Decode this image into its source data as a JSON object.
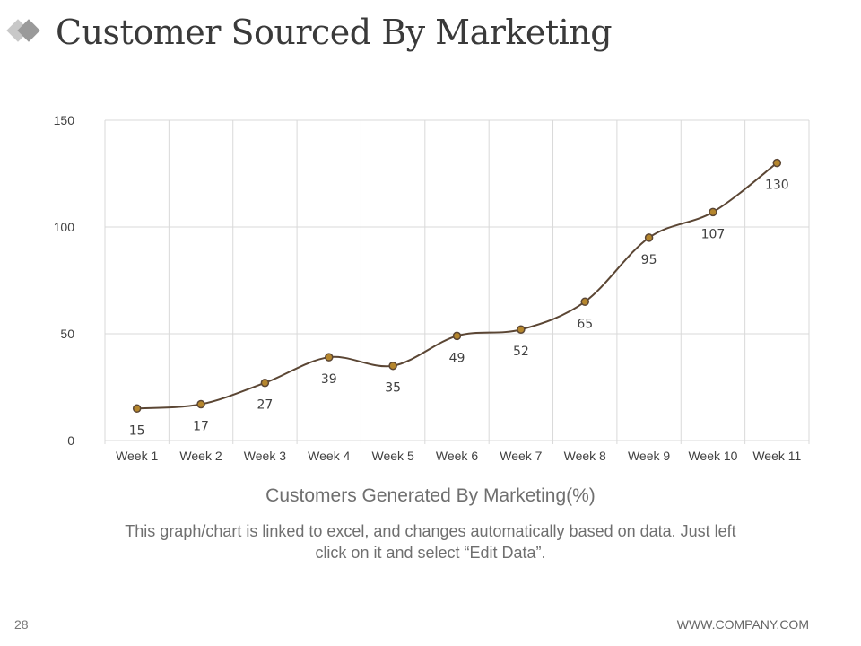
{
  "slide": {
    "title": "Customer Sourced By Marketing",
    "page_number": "28",
    "footer_url": "WWW.COMPANY.COM",
    "note": "This graph/chart is linked to excel, and changes automatically based on data. Just left click on it and select “Edit Data”."
  },
  "colors": {
    "line": "#5b4634",
    "marker_fill": "#b5862d",
    "marker_stroke": "#5b4634",
    "grid": "#d9d9d9",
    "text": "#404040",
    "logo_light": "#c8c8c8",
    "logo_dark": "#9a9a9a"
  },
  "chart_data": {
    "type": "line",
    "title": "Customers Generated By Marketing(%)",
    "categories": [
      "Week 1",
      "Week 2",
      "Week 3",
      "Week 4",
      "Week 5",
      "Week 6",
      "Week 7",
      "Week 8",
      "Week 9",
      "Week 10",
      "Week 11"
    ],
    "series": [
      {
        "name": "Customers Generated By Marketing(%)",
        "values": [
          15,
          17,
          27,
          39,
          35,
          49,
          52,
          65,
          95,
          107,
          130
        ]
      }
    ],
    "ylim": [
      0,
      150
    ],
    "yticks": [
      0,
      50,
      100,
      150
    ],
    "grid": true,
    "smooth": true,
    "data_labels": true,
    "xlabel": "",
    "ylabel": ""
  }
}
